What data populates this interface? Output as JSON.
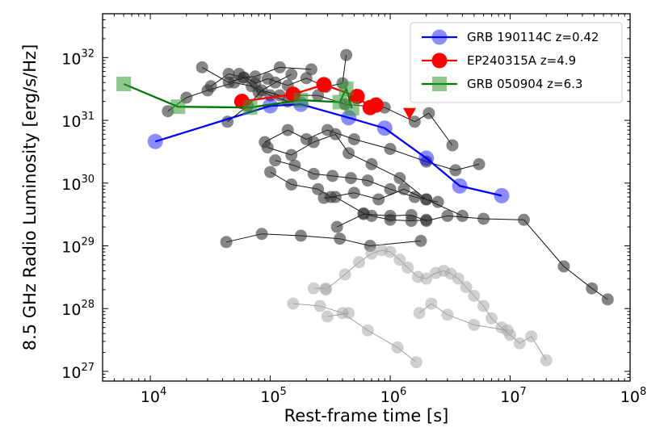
{
  "chart_data": {
    "type": "scatter",
    "title": "",
    "xlabel": "Rest-frame time [s]",
    "ylabel": "8.5 GHz Radio Luminosity [erg/s/Hz]",
    "xscale": "log",
    "yscale": "log",
    "xlim": [
      4000,
      100000000
    ],
    "ylim": [
      700000000000000000000000000,
      500000000000000000000000000000000
    ],
    "x_ticks": [
      {
        "base": "10",
        "exp": "4",
        "value": 10000
      },
      {
        "base": "10",
        "exp": "5",
        "value": 100000
      },
      {
        "base": "10",
        "exp": "6",
        "value": 1000000
      },
      {
        "base": "10",
        "exp": "7",
        "value": 10000000
      },
      {
        "base": "10",
        "exp": "8",
        "value": 100000000
      }
    ],
    "y_ticks": [
      {
        "base": "10",
        "exp": "27",
        "value": 1e+27
      },
      {
        "base": "10",
        "exp": "28",
        "value": 1e+28
      },
      {
        "base": "10",
        "exp": "29",
        "value": 1e+29
      },
      {
        "base": "10",
        "exp": "30",
        "value": 1e+30
      },
      {
        "base": "10",
        "exp": "31",
        "value": 1e+31
      },
      {
        "base": "10",
        "exp": "32",
        "value": 1e+32
      }
    ],
    "legend_position": "top-right",
    "series": [
      {
        "name": "GRB 190114C z=0.42",
        "color": "#0000ff",
        "marker": "circle",
        "in_legend": true,
        "x": [
          11000,
          100000,
          180000,
          450000,
          900000,
          2000000,
          3800000,
          8500000
        ],
        "y": [
          4.6e+30,
          1.7e+31,
          1.8e+31,
          1.1e+31,
          7.5e+30,
          2.5e+30,
          9e+29,
          6.3e+29
        ]
      },
      {
        "name": "EP240315A z=4.9",
        "color": "#ff0000",
        "marker": "circle",
        "in_legend": true,
        "x": [
          58000,
          155000,
          280000,
          530000,
          680000,
          760000
        ],
        "y": [
          2e+31,
          2.6e+31,
          3.7e+31,
          2.4e+31,
          1.6e+31,
          1.75e+31
        ]
      },
      {
        "name": "EP240315A upper limit",
        "color": "#ff0000",
        "marker": "triangle-down",
        "in_legend": false,
        "x": [
          1450000
        ],
        "y": [
          1.3e+31
        ]
      },
      {
        "name": "GRB 050904 z=6.3",
        "color": "#339933",
        "marker": "square",
        "in_legend": true,
        "x": [
          6000,
          17000,
          68000,
          180000,
          380000,
          430000,
          480000
        ],
        "y": [
          3.8e+31,
          1.65e+31,
          1.6e+31,
          2.1e+31,
          1.95e+31,
          3.2e+31,
          1.55e+31
        ]
      },
      {
        "name": "Radio GRB sample",
        "color": "#333333",
        "marker": "circle",
        "in_legend": false,
        "tracks": [
          {
            "x": [
              14000,
              20000,
              30000,
              50000,
              70000,
              100000,
              140000
            ],
            "y": [
              1.4e+31,
              2.3e+31,
              3e+31,
              4e+31,
              3.5e+31,
              2.5e+31,
              2e+31
            ]
          },
          {
            "x": [
              32000,
              45000,
              60000,
              80000,
              110000,
              150000
            ],
            "y": [
              3.5e+31,
              5.5e+31,
              4.8e+31,
              2.8e+31,
              4e+31,
              5.4e+31
            ]
          },
          {
            "x": [
              55000,
              75000,
              95000,
              140000,
              200000,
              290000,
              400000,
              430000
            ],
            "y": [
              5.5e+31,
              3.9e+31,
              4.6e+31,
              3.6e+31,
              4.7e+31,
              3.4e+31,
              3.9e+31,
              1.1e+32
            ]
          },
          {
            "x": [
              27000,
              45000,
              60000,
              75000,
              120000,
              220000
            ],
            "y": [
              7e+31,
              4e+31,
              4.8e+31,
              5e+31,
              7e+31,
              6.5e+31
            ]
          },
          {
            "x": [
              44000,
              65000,
              85000,
              120000,
              250000,
              420000,
              900000,
              1600000,
              2100000,
              3300000
            ],
            "y": [
              9.5e+30,
              1.7e+31,
              3e+31,
              2.5e+31,
              2.5e+31,
              1.8e+31,
              1.6e+31,
              9.5e+30,
              1.3e+31,
              4e+30
            ]
          },
          {
            "x": [
              90000,
              140000,
              200000,
              300000,
              500000,
              1000000,
              2000000,
              3500000,
              5500000
            ],
            "y": [
              4.5e+30,
              7e+30,
              5e+30,
              7e+30,
              5e+30,
              3.5e+30,
              2.2e+30,
              1.6e+30,
              2e+30
            ]
          },
          {
            "x": [
              95000,
              150000,
              230000,
              350000,
              450000,
              700000,
              1200000,
              2000000
            ],
            "y": [
              3.7e+30,
              2.8e+30,
              4.5e+30,
              6e+30,
              3e+30,
              2e+30,
              1.2e+30,
              5.5e+29
            ]
          },
          {
            "x": [
              110000,
              160000,
              230000,
              330000,
              470000,
              650000,
              1000000,
              1600000,
              2500000
            ],
            "y": [
              2.3e+30,
              1.9e+30,
              1.4e+30,
              1.3e+30,
              1.2e+30,
              1.1e+30,
              8e+29,
              6e+29,
              5e+29
            ]
          },
          {
            "x": [
              100000,
              150000,
              250000,
              320000,
              500000,
              800000,
              1300000,
              2000000,
              4000000
            ],
            "y": [
              1.5e+30,
              9.5e+29,
              8e+29,
              6e+29,
              7e+29,
              5.5e+29,
              8e+29,
              5.5e+29,
              3e+29
            ]
          },
          {
            "x": [
              280000,
              350000,
              600000,
              700000,
              1000000,
              1500000,
              2000000
            ],
            "y": [
              5.8e+29,
              6e+29,
              3.3e+29,
              3e+29,
              2.6e+29,
              2.5e+29,
              2.6e+29
            ]
          },
          {
            "x": [
              360000,
              600000,
              1000000,
              1500000,
              2000000,
              3000000,
              6000000,
              13000000,
              28000000,
              48000000,
              65000000
            ],
            "y": [
              2e+29,
              3.2e+29,
              3e+29,
              3.1e+29,
              2.5e+29,
              3e+29,
              2.7e+29,
              2.6e+29,
              4.7e+28,
              2.1e+28,
              1.4e+28
            ]
          },
          {
            "x": [
              43000,
              85000,
              180000,
              380000,
              680000,
              1800000
            ],
            "y": [
              1.15e+29,
              1.55e+29,
              1.45e+29,
              1.3e+29,
              1e+29,
              1.2e+29
            ]
          }
        ]
      },
      {
        "name": "Low-luminosity sample",
        "color": "#aaaaaa",
        "marker": "circle",
        "in_legend": false,
        "tracks": [
          {
            "x": [
              290000,
              420000,
              550000,
              700000,
              850000,
              1000000,
              1200000,
              1400000,
              1700000,
              2000000,
              2400000,
              2800000,
              3200000,
              3700000,
              4300000,
              5000000,
              6000000,
              7000000,
              8500000,
              10000000,
              12000000,
              15000000,
              20000000
            ],
            "y": [
              2e+28,
              3.5e+28,
              5.5e+28,
              7.5e+28,
              8.5e+28,
              8e+28,
              6e+28,
              4.5e+28,
              3.2e+28,
              3e+28,
              3.7e+28,
              4e+28,
              3.6e+28,
              3e+28,
              2.2e+28,
              1.6e+28,
              1.1e+28,
              7e+27,
              5e+27,
              3.8e+27,
              2.8e+27,
              3.6e+27,
              1.5e+27
            ]
          },
          {
            "x": [
              230000,
              290000
            ],
            "y": [
              2.1e+28,
              2.1e+28
            ]
          },
          {
            "x": [
              155000,
              260000,
              400000,
              650000,
              1150000,
              1650000
            ],
            "y": [
              1.2e+28,
              1.1e+28,
              8.5e+27,
              4.5e+27,
              2.4e+27,
              1.4e+27
            ]
          },
          {
            "x": [
              1750000,
              2200000,
              3000000,
              5000000,
              9500000
            ],
            "y": [
              8.5e+27,
              1.2e+28,
              8e+27,
              5.5e+27,
              4.5e+27
            ]
          },
          {
            "x": [
              300000,
              450000
            ],
            "y": [
              7.5e+27,
              8.5e+27
            ]
          }
        ]
      }
    ]
  }
}
